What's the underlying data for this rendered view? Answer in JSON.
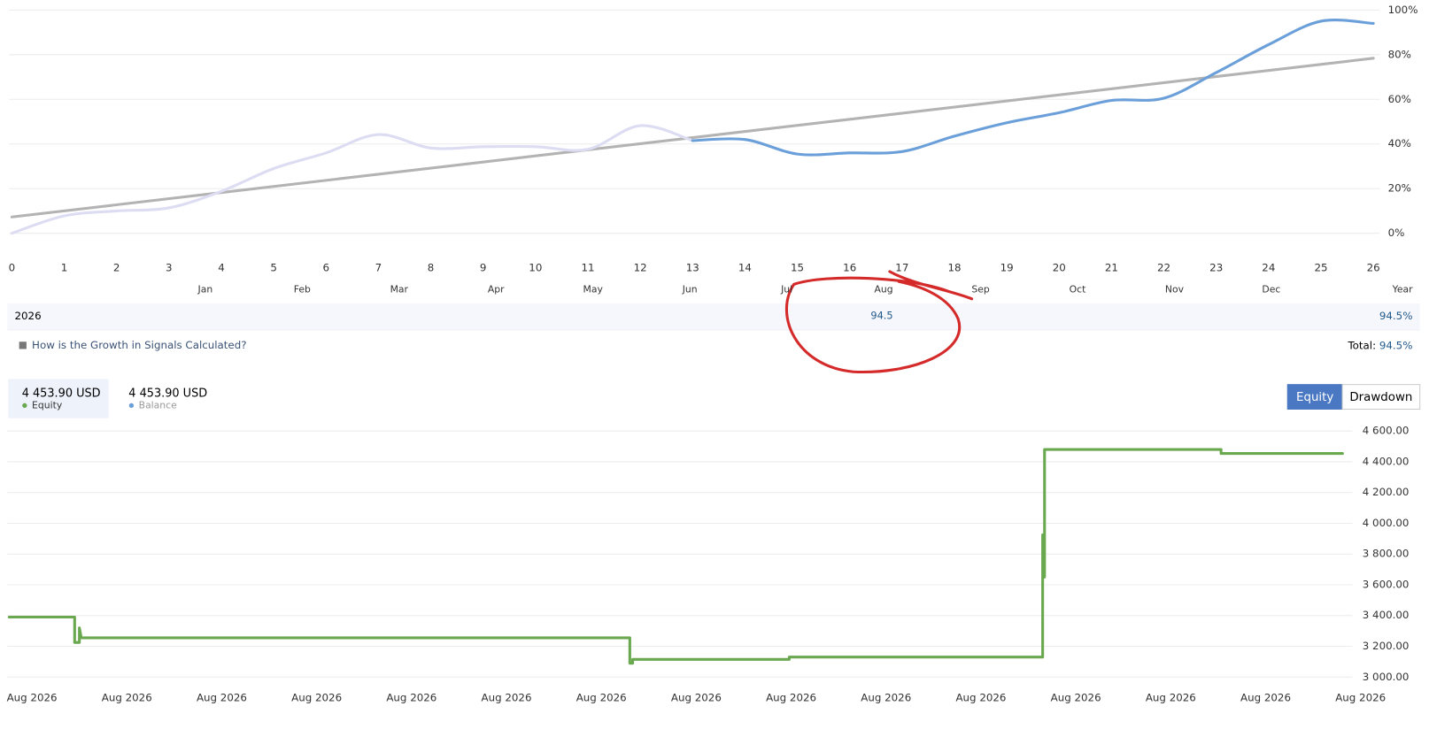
{
  "chart_data": [
    {
      "type": "line",
      "x": [
        0,
        1,
        2,
        3,
        4,
        5,
        6,
        7,
        8,
        9,
        10,
        11,
        12,
        13,
        14,
        15,
        16,
        17,
        18,
        19,
        20,
        21,
        22,
        23,
        24,
        25,
        26
      ],
      "xlim": [
        0,
        26
      ],
      "xticks": [
        0,
        1,
        2,
        3,
        4,
        5,
        6,
        7,
        8,
        9,
        10,
        11,
        12,
        13,
        14,
        15,
        16,
        17,
        18,
        19,
        20,
        21,
        22,
        23,
        24,
        25,
        26
      ],
      "ylim": [
        -10,
        100
      ],
      "yticks": [
        {
          "value": 0,
          "label": "0%"
        },
        {
          "value": 20,
          "label": "20%"
        },
        {
          "value": 40,
          "label": "40%"
        },
        {
          "value": 60,
          "label": "60%"
        },
        {
          "value": 80,
          "label": "80%"
        },
        {
          "value": 100,
          "label": "100%"
        }
      ],
      "grid": true,
      "smooth": true,
      "series": [
        {
          "color": "#dcdcf2",
          "values": [
            0,
            7.8,
            10,
            11.4,
            18.8,
            29,
            36,
            44.2,
            38.2,
            38.8,
            38.8,
            37.6,
            48.2,
            41.5,
            null,
            null,
            null,
            null,
            null,
            null,
            null,
            null,
            null,
            null,
            null,
            null,
            null
          ]
        },
        {
          "color": "#6a9fd9",
          "values": [
            null,
            null,
            null,
            null,
            null,
            null,
            null,
            null,
            null,
            null,
            null,
            null,
            null,
            41.5,
            42,
            35.5,
            36,
            36.6,
            43.5,
            49.5,
            54,
            59.5,
            60.5,
            72,
            84.5,
            95,
            94
          ]
        }
      ],
      "trend": {
        "color": "#b3b3b3",
        "x": [
          0,
          26
        ],
        "values": [
          7.3,
          78.4
        ]
      }
    },
    {
      "type": "line",
      "x": [
        -0.24,
        0.45,
        0.45,
        0.5,
        0.5,
        0.52,
        6.3,
        6.3,
        6.33,
        6.33,
        7.98,
        7.98,
        10.65,
        10.65,
        10.67,
        10.67,
        12.53,
        12.53,
        13.81
      ],
      "xlim": [
        -0.25,
        14
      ],
      "xticks": [
        {
          "value": 0,
          "label": "Aug 2026"
        },
        {
          "value": 1,
          "label": "Aug 2026"
        },
        {
          "value": 2,
          "label": "Aug 2026"
        },
        {
          "value": 3,
          "label": "Aug 2026"
        },
        {
          "value": 4,
          "label": "Aug 2026"
        },
        {
          "value": 5,
          "label": "Aug 2026"
        },
        {
          "value": 6,
          "label": "Aug 2026"
        },
        {
          "value": 7,
          "label": "Aug 2026"
        },
        {
          "value": 8,
          "label": "Aug 2026"
        },
        {
          "value": 9,
          "label": "Aug 2026"
        },
        {
          "value": 10,
          "label": "Aug 2026"
        },
        {
          "value": 11,
          "label": "Aug 2026"
        },
        {
          "value": 12,
          "label": "Aug 2026"
        },
        {
          "value": 13,
          "label": "Aug 2026"
        },
        {
          "value": 14,
          "label": "Aug 2026"
        }
      ],
      "ylim": [
        2970,
        4640
      ],
      "yticks": [
        {
          "value": 3000,
          "label": "3 000.00"
        },
        {
          "value": 3200,
          "label": "3 200.00"
        },
        {
          "value": 3400,
          "label": "3 400.00"
        },
        {
          "value": 3600,
          "label": "3 600.00"
        },
        {
          "value": 3800,
          "label": "3 800.00"
        },
        {
          "value": 4000,
          "label": "4 000.00"
        },
        {
          "value": 4200,
          "label": "4 200.00"
        },
        {
          "value": 4400,
          "label": "4 400.00"
        },
        {
          "value": 4600,
          "label": "4 600.00"
        }
      ],
      "grid": true,
      "smooth": false,
      "series": [
        {
          "color": "#6aa84f",
          "values": [
            3390,
            3390,
            3225,
            3225,
            3320,
            3255,
            3255,
            3090,
            3090,
            3115,
            3115,
            3130,
            3130,
            3925,
            3650,
            4480,
            4480,
            4453.9,
            4453.9
          ]
        }
      ]
    }
  ],
  "returns_table": {
    "header": [
      "Jan",
      "Feb",
      "Mar",
      "Apr",
      "May",
      "Jun",
      "Jul",
      "Aug",
      "Sep",
      "Oct",
      "Nov",
      "Dec",
      "Year"
    ],
    "rows": [
      {
        "year": "2026",
        "months": [
          null,
          null,
          null,
          null,
          null,
          null,
          null,
          94.5,
          null,
          null,
          null,
          null
        ],
        "total": "94.5%"
      }
    ]
  },
  "growth_link": "How is the Growth in Signals Calculated?",
  "total_label": "Total:",
  "total_value": "94.5%",
  "legend": [
    {
      "value": "4 453.90 USD",
      "name": "Equity",
      "color": "#6aa84f"
    },
    {
      "value": "4 453.90 USD",
      "name": "Balance",
      "color": "#6a9fd9"
    }
  ],
  "tabs": [
    "Equity",
    "Drawdown"
  ]
}
